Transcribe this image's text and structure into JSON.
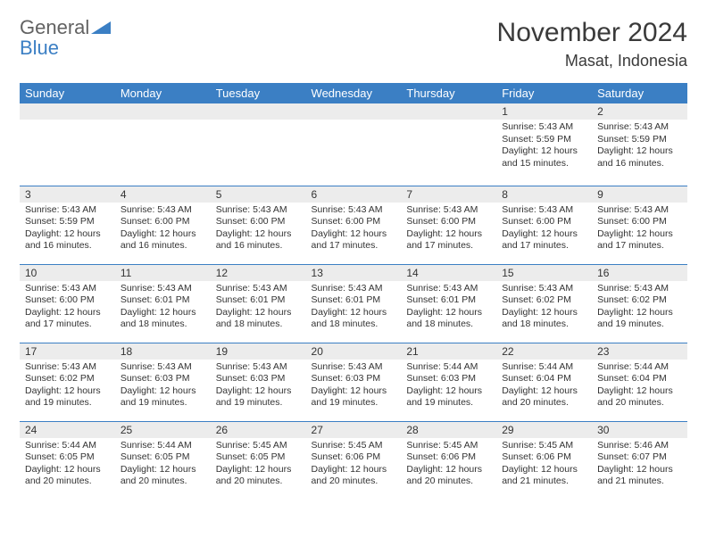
{
  "logo": {
    "text1": "General",
    "text2": "Blue"
  },
  "title": "November 2024",
  "location": "Masat, Indonesia",
  "dayHeaders": [
    "Sunday",
    "Monday",
    "Tuesday",
    "Wednesday",
    "Thursday",
    "Friday",
    "Saturday"
  ],
  "colors": {
    "header_bg": "#3b7fc4",
    "header_fg": "#ffffff",
    "daynum_bg": "#ececec",
    "border": "#3b7fc4",
    "text": "#333333",
    "logo_gray": "#626262",
    "logo_blue": "#3b7fc4"
  },
  "weeks": [
    [
      null,
      null,
      null,
      null,
      null,
      {
        "n": "1",
        "sunrise": "5:43 AM",
        "sunset": "5:59 PM",
        "daylight": "12 hours and 15 minutes."
      },
      {
        "n": "2",
        "sunrise": "5:43 AM",
        "sunset": "5:59 PM",
        "daylight": "12 hours and 16 minutes."
      }
    ],
    [
      {
        "n": "3",
        "sunrise": "5:43 AM",
        "sunset": "5:59 PM",
        "daylight": "12 hours and 16 minutes."
      },
      {
        "n": "4",
        "sunrise": "5:43 AM",
        "sunset": "6:00 PM",
        "daylight": "12 hours and 16 minutes."
      },
      {
        "n": "5",
        "sunrise": "5:43 AM",
        "sunset": "6:00 PM",
        "daylight": "12 hours and 16 minutes."
      },
      {
        "n": "6",
        "sunrise": "5:43 AM",
        "sunset": "6:00 PM",
        "daylight": "12 hours and 17 minutes."
      },
      {
        "n": "7",
        "sunrise": "5:43 AM",
        "sunset": "6:00 PM",
        "daylight": "12 hours and 17 minutes."
      },
      {
        "n": "8",
        "sunrise": "5:43 AM",
        "sunset": "6:00 PM",
        "daylight": "12 hours and 17 minutes."
      },
      {
        "n": "9",
        "sunrise": "5:43 AM",
        "sunset": "6:00 PM",
        "daylight": "12 hours and 17 minutes."
      }
    ],
    [
      {
        "n": "10",
        "sunrise": "5:43 AM",
        "sunset": "6:00 PM",
        "daylight": "12 hours and 17 minutes."
      },
      {
        "n": "11",
        "sunrise": "5:43 AM",
        "sunset": "6:01 PM",
        "daylight": "12 hours and 18 minutes."
      },
      {
        "n": "12",
        "sunrise": "5:43 AM",
        "sunset": "6:01 PM",
        "daylight": "12 hours and 18 minutes."
      },
      {
        "n": "13",
        "sunrise": "5:43 AM",
        "sunset": "6:01 PM",
        "daylight": "12 hours and 18 minutes."
      },
      {
        "n": "14",
        "sunrise": "5:43 AM",
        "sunset": "6:01 PM",
        "daylight": "12 hours and 18 minutes."
      },
      {
        "n": "15",
        "sunrise": "5:43 AM",
        "sunset": "6:02 PM",
        "daylight": "12 hours and 18 minutes."
      },
      {
        "n": "16",
        "sunrise": "5:43 AM",
        "sunset": "6:02 PM",
        "daylight": "12 hours and 19 minutes."
      }
    ],
    [
      {
        "n": "17",
        "sunrise": "5:43 AM",
        "sunset": "6:02 PM",
        "daylight": "12 hours and 19 minutes."
      },
      {
        "n": "18",
        "sunrise": "5:43 AM",
        "sunset": "6:03 PM",
        "daylight": "12 hours and 19 minutes."
      },
      {
        "n": "19",
        "sunrise": "5:43 AM",
        "sunset": "6:03 PM",
        "daylight": "12 hours and 19 minutes."
      },
      {
        "n": "20",
        "sunrise": "5:43 AM",
        "sunset": "6:03 PM",
        "daylight": "12 hours and 19 minutes."
      },
      {
        "n": "21",
        "sunrise": "5:44 AM",
        "sunset": "6:03 PM",
        "daylight": "12 hours and 19 minutes."
      },
      {
        "n": "22",
        "sunrise": "5:44 AM",
        "sunset": "6:04 PM",
        "daylight": "12 hours and 20 minutes."
      },
      {
        "n": "23",
        "sunrise": "5:44 AM",
        "sunset": "6:04 PM",
        "daylight": "12 hours and 20 minutes."
      }
    ],
    [
      {
        "n": "24",
        "sunrise": "5:44 AM",
        "sunset": "6:05 PM",
        "daylight": "12 hours and 20 minutes."
      },
      {
        "n": "25",
        "sunrise": "5:44 AM",
        "sunset": "6:05 PM",
        "daylight": "12 hours and 20 minutes."
      },
      {
        "n": "26",
        "sunrise": "5:45 AM",
        "sunset": "6:05 PM",
        "daylight": "12 hours and 20 minutes."
      },
      {
        "n": "27",
        "sunrise": "5:45 AM",
        "sunset": "6:06 PM",
        "daylight": "12 hours and 20 minutes."
      },
      {
        "n": "28",
        "sunrise": "5:45 AM",
        "sunset": "6:06 PM",
        "daylight": "12 hours and 20 minutes."
      },
      {
        "n": "29",
        "sunrise": "5:45 AM",
        "sunset": "6:06 PM",
        "daylight": "12 hours and 21 minutes."
      },
      {
        "n": "30",
        "sunrise": "5:46 AM",
        "sunset": "6:07 PM",
        "daylight": "12 hours and 21 minutes."
      }
    ]
  ],
  "labels": {
    "sunrise": "Sunrise:",
    "sunset": "Sunset:",
    "daylight": "Daylight:"
  }
}
